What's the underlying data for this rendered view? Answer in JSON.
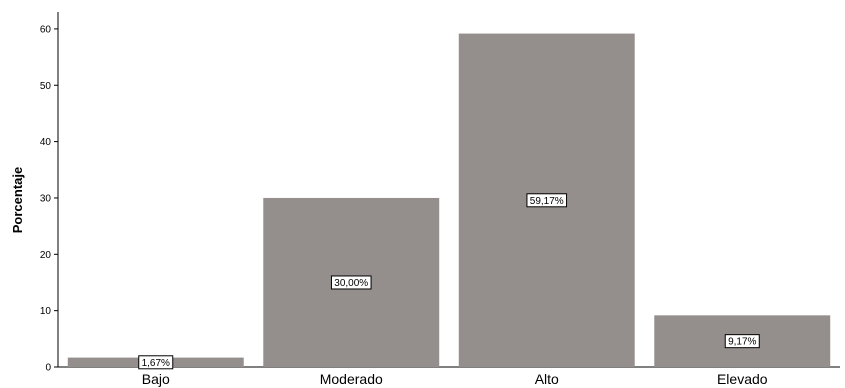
{
  "chart_data": {
    "type": "bar",
    "categories": [
      "Bajo",
      "Moderado",
      "Alto",
      "Elevado"
    ],
    "values": [
      1.67,
      30.0,
      59.17,
      9.17
    ],
    "data_labels": [
      "1,67%",
      "30,00%",
      "59,17%",
      "9,17%"
    ],
    "title": "",
    "xlabel": "",
    "ylabel": "Porcentaje",
    "ylim": [
      0,
      63
    ],
    "yticks": [
      0,
      10,
      20,
      30,
      40,
      50,
      60
    ],
    "grid": false,
    "bar_color": "#948f8d"
  }
}
